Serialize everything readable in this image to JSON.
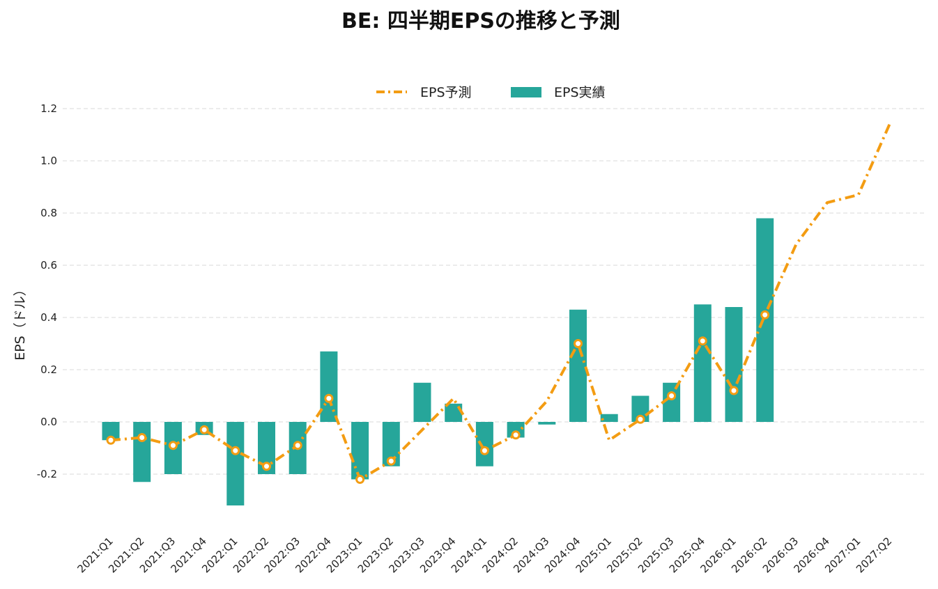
{
  "chart_data": {
    "type": "bar",
    "title": "BE: 四半期EPSの推移と予測",
    "ylabel": "EPS（ドル）",
    "xlabel": "",
    "ylim": [
      -0.32,
      1.2
    ],
    "yticks": [
      -0.2,
      0.0,
      0.2,
      0.4,
      0.6,
      0.8,
      1.0,
      1.2
    ],
    "ytick_labels": [
      "-0.2",
      "0.0",
      "0.2",
      "0.4",
      "0.6",
      "0.8",
      "1.0",
      "1.2"
    ],
    "grid": true,
    "legend_placement": "top-center",
    "categories": [
      "2021:Q1",
      "2021:Q2",
      "2021:Q3",
      "2021:Q4",
      "2022:Q1",
      "2022:Q2",
      "2022:Q3",
      "2022:Q4",
      "2023:Q1",
      "2023:Q2",
      "2023:Q3",
      "2023:Q4",
      "2024:Q1",
      "2024:Q2",
      "2024:Q3",
      "2024:Q4",
      "2025:Q1",
      "2025:Q2",
      "2025:Q3",
      "2025:Q4",
      "2026:Q1",
      "2026:Q2",
      "2026:Q3",
      "2026:Q4",
      "2027:Q1",
      "2027:Q2"
    ],
    "series": [
      {
        "name": "EPS予測",
        "type": "line",
        "color": "#f39c12",
        "values": [
          -0.07,
          -0.06,
          -0.09,
          -0.03,
          -0.11,
          -0.17,
          -0.09,
          0.09,
          -0.22,
          -0.15,
          -0.03,
          0.09,
          -0.11,
          -0.05,
          0.08,
          0.3,
          -0.07,
          0.01,
          0.1,
          0.31,
          0.12,
          0.41,
          0.68,
          0.84,
          0.87,
          1.14
        ],
        "markers": [
          true,
          true,
          true,
          true,
          true,
          true,
          true,
          true,
          true,
          true,
          false,
          false,
          true,
          true,
          false,
          true,
          false,
          true,
          true,
          true,
          true,
          true,
          false,
          false,
          false,
          false
        ]
      },
      {
        "name": "EPS実績",
        "type": "bar",
        "color": "#26a69a",
        "values": [
          -0.07,
          -0.23,
          -0.2,
          -0.05,
          -0.32,
          -0.2,
          -0.2,
          0.27,
          -0.22,
          -0.17,
          0.15,
          0.07,
          -0.17,
          -0.06,
          -0.01,
          0.43,
          0.03,
          0.1,
          0.15,
          0.45,
          0.44,
          0.78,
          null,
          null,
          null,
          null
        ]
      }
    ]
  }
}
